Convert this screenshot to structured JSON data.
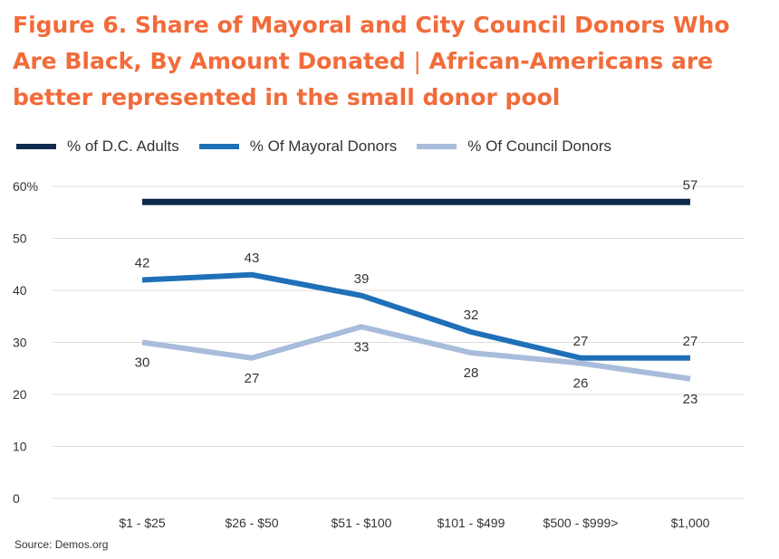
{
  "header": {
    "title_bold": "Figure 6. Share of Mayoral and City Council Donors Who Are Black, By Amount Donated",
    "separator": "|",
    "subtitle": "African-Americans are better represented in the small donor pool"
  },
  "source": "Source: Demos.org",
  "colors": {
    "title": "#f26b3a",
    "adults": "#0f2a4d",
    "mayoral": "#2070b8",
    "council": "#a8bcdb",
    "grid": "#dddddd",
    "text": "#333333"
  },
  "chart_data": {
    "type": "line",
    "categories": [
      "$1 - $25",
      "$26 - $50",
      "$51 - $100",
      "$101 - $499",
      "$500 - $999>",
      "$1,000"
    ],
    "ylim": [
      0,
      60
    ],
    "yticks": [
      0,
      10,
      20,
      30,
      40,
      50,
      60
    ],
    "ytick_labels": [
      "0",
      "10",
      "20",
      "30",
      "40",
      "50",
      "60%"
    ],
    "grid": true,
    "legend_position": "top-left",
    "series": [
      {
        "name": "% of D.C. Adults",
        "values": [
          57,
          57,
          57,
          57,
          57,
          57
        ],
        "labels": [
          "",
          "",
          "",
          "",
          "",
          "57"
        ],
        "label_pos": [
          "above",
          "above",
          "above",
          "above",
          "above",
          "above"
        ],
        "color": "#0f2a4d"
      },
      {
        "name": "% Of Mayoral Donors",
        "values": [
          42,
          43,
          39,
          32,
          27,
          27
        ],
        "labels": [
          "42",
          "43",
          "39",
          "32",
          "27",
          "27"
        ],
        "label_pos": [
          "above",
          "above",
          "above",
          "above",
          "above",
          "above"
        ],
        "color": "#2070b8"
      },
      {
        "name": "% Of Council Donors",
        "values": [
          30,
          27,
          33,
          28,
          26,
          23
        ],
        "labels": [
          "30",
          "27",
          "33",
          "28",
          "26",
          "23"
        ],
        "label_pos": [
          "below",
          "below",
          "below",
          "below",
          "below",
          "below"
        ],
        "color": "#a8bcdb"
      }
    ]
  }
}
